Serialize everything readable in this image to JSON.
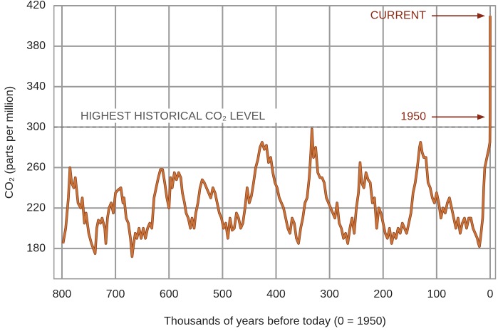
{
  "chart_data": {
    "type": "line",
    "x_label": "Thousands of years before today (0 = 1950)",
    "y_label": "CO₂ (parts per million)",
    "xlim": [
      815,
      -10
    ],
    "ylim": [
      150,
      420
    ],
    "xticks": [
      800,
      700,
      600,
      500,
      400,
      300,
      200,
      100,
      0
    ],
    "yticks": [
      180,
      220,
      260,
      300,
      340,
      380,
      420
    ],
    "grid": true,
    "reference_line": {
      "value": 300,
      "label": "HIGHEST HISTORICAL CO₂ LEVEL"
    },
    "annotations": [
      {
        "text": "CURRENT",
        "y": 410
      },
      {
        "text": "1950",
        "y": 310
      }
    ],
    "series": [
      {
        "color": "#c8743a",
        "x": [
          798,
          793,
          788,
          785,
          782,
          778,
          775,
          770,
          765,
          762,
          758,
          755,
          750,
          745,
          740,
          738,
          735,
          732,
          728,
          725,
          720,
          718,
          715,
          712,
          708,
          704,
          700,
          695,
          690,
          686,
          684,
          680,
          676,
          672,
          669,
          666,
          663,
          660,
          656,
          652,
          648,
          644,
          640,
          636,
          632,
          628,
          624,
          620,
          616,
          612,
          608,
          604,
          600,
          597,
          594,
          590,
          586,
          582,
          578,
          575,
          571,
          568,
          564,
          560,
          557,
          553,
          550,
          546,
          542,
          538,
          534,
          530,
          526,
          522,
          518,
          514,
          510,
          506,
          502,
          498,
          494,
          490,
          486,
          482,
          478,
          474,
          470,
          466,
          462,
          458,
          454,
          450,
          446,
          442,
          438,
          434,
          430,
          426,
          422,
          418,
          414,
          410,
          406,
          402,
          398,
          394,
          390,
          386,
          382,
          378,
          374,
          370,
          366,
          362,
          358,
          354,
          350,
          346,
          342,
          338,
          335,
          333,
          330,
          326,
          322,
          318,
          314,
          310,
          306,
          302,
          298,
          294,
          290,
          286,
          282,
          278,
          274,
          270,
          266,
          262,
          258,
          254,
          250,
          246,
          243,
          240,
          236,
          232,
          228,
          224,
          220,
          216,
          212,
          208,
          204,
          200,
          196,
          192,
          188,
          184,
          180,
          176,
          172,
          168,
          164,
          160,
          156,
          152,
          148,
          144,
          140,
          136,
          132,
          130,
          127,
          124,
          120,
          116,
          112,
          108,
          104,
          100,
          96,
          92,
          88,
          84,
          80,
          76,
          72,
          68,
          64,
          60,
          56,
          52,
          48,
          44,
          40,
          36,
          32,
          28,
          24,
          22,
          20,
          18,
          16,
          14,
          12,
          10,
          8,
          6,
          4,
          2,
          0.5,
          0.1,
          0
        ],
        "values": [
          185,
          200,
          230,
          260,
          245,
          240,
          250,
          225,
          220,
          230,
          205,
          215,
          195,
          185,
          178,
          175,
          200,
          208,
          205,
          210,
          200,
          185,
          210,
          220,
          225,
          215,
          235,
          238,
          240,
          225,
          230,
          210,
          205,
          190,
          172,
          185,
          195,
          190,
          200,
          190,
          200,
          190,
          200,
          205,
          200,
          230,
          240,
          250,
          258,
          258,
          245,
          230,
          220,
          250,
          240,
          255,
          248,
          255,
          250,
          235,
          225,
          215,
          210,
          200,
          210,
          200,
          215,
          225,
          240,
          248,
          245,
          240,
          235,
          230,
          240,
          235,
          225,
          215,
          210,
          200,
          205,
          190,
          210,
          198,
          200,
          215,
          210,
          200,
          205,
          220,
          240,
          225,
          232,
          245,
          260,
          268,
          280,
          285,
          278,
          282,
          265,
          270,
          255,
          245,
          240,
          230,
          225,
          220,
          210,
          200,
          195,
          210,
          205,
          190,
          185,
          200,
          210,
          225,
          230,
          250,
          275,
          298,
          270,
          280,
          255,
          250,
          250,
          245,
          230,
          225,
          220,
          215,
          210,
          225,
          205,
          200,
          190,
          195,
          185,
          200,
          210,
          195,
          220,
          235,
          265,
          245,
          240,
          255,
          248,
          245,
          225,
          230,
          200,
          220,
          215,
          205,
          195,
          190,
          200,
          185,
          195,
          190,
          200,
          195,
          205,
          200,
          195,
          205,
          215,
          235,
          245,
          260,
          280,
          285,
          275,
          270,
          270,
          245,
          240,
          230,
          225,
          235,
          225,
          210,
          220,
          215,
          225,
          230,
          220,
          210,
          200,
          210,
          195,
          205,
          210,
          200,
          210,
          210,
          200,
          195,
          190,
          185,
          182,
          190,
          200,
          210,
          240,
          260,
          265,
          270,
          275,
          280,
          285,
          310,
          410
        ]
      }
    ]
  }
}
